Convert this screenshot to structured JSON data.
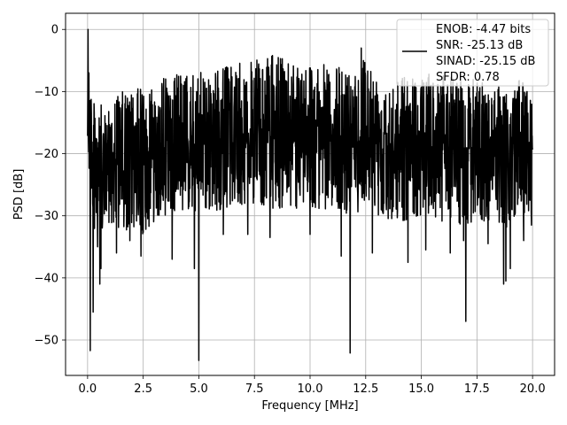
{
  "chart_data": {
    "type": "line",
    "title": "",
    "xlabel": "Frequency [MHz]",
    "ylabel": "PSD [dB]",
    "xlim": [
      -0.99,
      20.99
    ],
    "ylim": [
      -55.7,
      2.6
    ],
    "xticks": [
      0.0,
      2.5,
      5.0,
      7.5,
      10.0,
      12.5,
      15.0,
      17.5,
      20.0
    ],
    "xtick_labels": [
      "0.0",
      "2.5",
      "5.0",
      "7.5",
      "10.0",
      "12.5",
      "15.0",
      "17.5",
      "20.0"
    ],
    "yticks": [
      0,
      -10,
      -20,
      -30,
      -40,
      -50
    ],
    "ytick_labels": [
      "0",
      "−10",
      "−20",
      "−30",
      "−40",
      "−50"
    ],
    "grid": true,
    "legend_position": "top-right",
    "legend_lines": [
      "ENOB: -4.47 bits",
      "SNR: -25.13 dB",
      "SINAD: -25.15 dB",
      "SFDR: 0.78"
    ],
    "series": [
      {
        "color": "#000000",
        "envelope": {
          "x": [
            0.0,
            0.05,
            0.1,
            0.2,
            0.3,
            0.5,
            0.8,
            1.0,
            1.5,
            2.0,
            2.5,
            3.0,
            4.0,
            5.0,
            6.0,
            7.5,
            8.5,
            10.0,
            11.0,
            12.0,
            12.5,
            13.0,
            14.0,
            15.0,
            16.0,
            17.0,
            18.0,
            19.0,
            19.5,
            20.0
          ],
          "upper": [
            -3,
            -1,
            -6,
            -9,
            -12,
            -11,
            -14,
            -11,
            -10,
            -10,
            -9,
            -8,
            -7,
            -7,
            -6,
            -5,
            -4,
            -5,
            -6,
            -6,
            -4,
            -7,
            -7,
            -7,
            -7,
            -8,
            -8,
            -9,
            -8,
            -9
          ],
          "lower": [
            -20,
            -24,
            -27,
            -28,
            -32,
            -34,
            -33,
            -31,
            -34,
            -32,
            -33,
            -31,
            -29,
            -30,
            -29,
            -28,
            -29,
            -29,
            -29,
            -30,
            -28,
            -30,
            -31,
            -30,
            -31,
            -32,
            -31,
            -32,
            -30,
            -30
          ]
        },
        "peaks": [
          {
            "x": 0.02,
            "y": 0.0
          },
          {
            "x": 0.04,
            "y": -18
          },
          {
            "x": 0.06,
            "y": -7
          },
          {
            "x": 12.3,
            "y": -3
          },
          {
            "x": 12.4,
            "y": -5
          }
        ],
        "dips": [
          {
            "x": 0.12,
            "y": -51.7
          },
          {
            "x": 0.25,
            "y": -45.5
          },
          {
            "x": 0.45,
            "y": -35
          },
          {
            "x": 0.55,
            "y": -41
          },
          {
            "x": 0.6,
            "y": -38.5
          },
          {
            "x": 1.3,
            "y": -36
          },
          {
            "x": 1.9,
            "y": -34
          },
          {
            "x": 2.4,
            "y": -36.5
          },
          {
            "x": 3.8,
            "y": -37
          },
          {
            "x": 4.8,
            "y": -38.5
          },
          {
            "x": 5.0,
            "y": -53.3
          },
          {
            "x": 6.1,
            "y": -33
          },
          {
            "x": 7.2,
            "y": -33
          },
          {
            "x": 8.2,
            "y": -33.5
          },
          {
            "x": 10.0,
            "y": -33
          },
          {
            "x": 11.4,
            "y": -36.5
          },
          {
            "x": 11.8,
            "y": -52.1
          },
          {
            "x": 12.8,
            "y": -36
          },
          {
            "x": 14.4,
            "y": -37.5
          },
          {
            "x": 15.2,
            "y": -35.5
          },
          {
            "x": 16.3,
            "y": -36
          },
          {
            "x": 16.9,
            "y": -34
          },
          {
            "x": 17.0,
            "y": -47
          },
          {
            "x": 18.0,
            "y": -34.5
          },
          {
            "x": 18.7,
            "y": -41
          },
          {
            "x": 18.8,
            "y": -40.5
          },
          {
            "x": 19.0,
            "y": -38.5
          },
          {
            "x": 19.6,
            "y": -34
          },
          {
            "x": 19.95,
            "y": -31.5
          }
        ]
      }
    ]
  }
}
